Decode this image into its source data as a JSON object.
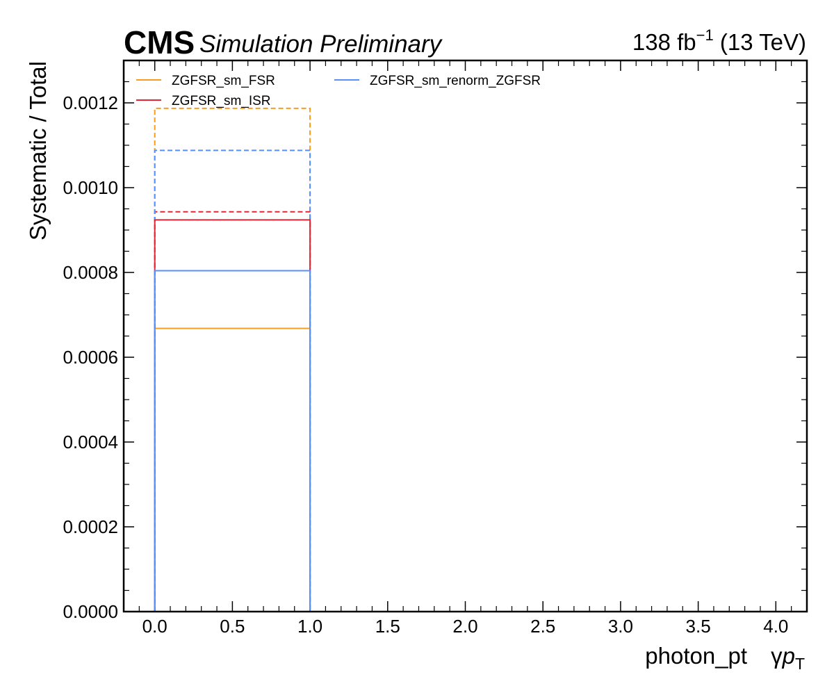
{
  "header": {
    "experiment": "CMS",
    "label": "Simulation Preliminary",
    "lumi_value": "138 fb",
    "lumi_exp": "−1",
    "energy": " (13 TeV)"
  },
  "chart_data": {
    "type": "step",
    "xlabel_main": "photon_pt",
    "xlabel_gamma": "γ",
    "xlabel_p": "p",
    "xlabel_sub": "T",
    "ylabel": "Systematic / Total",
    "xlim": [
      -0.2,
      4.2
    ],
    "ylim": [
      0,
      0.0013
    ],
    "x_ticks": [
      "0.0",
      "0.5",
      "1.0",
      "1.5",
      "2.0",
      "2.5",
      "3.0",
      "3.5",
      "4.0"
    ],
    "y_ticks": [
      "0.0000",
      "0.0002",
      "0.0004",
      "0.0006",
      "0.0008",
      "0.0010",
      "0.0012"
    ],
    "bin_edges": [
      0,
      1
    ],
    "series": [
      {
        "name": "ZGFSR_sm_FSR",
        "color": "#f89c20",
        "solid": 0.000668,
        "dashed": 0.001187
      },
      {
        "name": "ZGFSR_sm_ISR",
        "color": "#e42536",
        "solid": 0.000924,
        "dashed": 0.000943
      },
      {
        "name": "ZGFSR_sm_renorm_ZGFSR",
        "color": "#5790fc",
        "solid": 0.000804,
        "dashed": 0.001088
      }
    ],
    "legend_position": "top-left"
  }
}
